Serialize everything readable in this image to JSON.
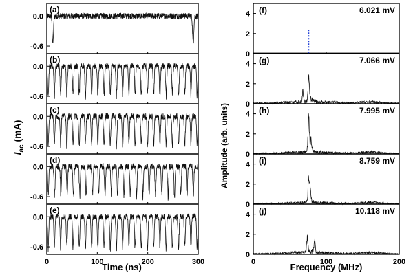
{
  "chart_data": [
    {
      "type": "line",
      "group": "left",
      "xlabel": "Time (ns)",
      "ylabel_main": "I",
      "ylabel_sub": "ac",
      "ylabel_unit": "(mA)",
      "xlim": [
        0,
        300
      ],
      "xticks": [
        0,
        100,
        200,
        300
      ],
      "xtick_labels": [
        "0",
        "100",
        "200",
        "300"
      ],
      "ylim": [
        -0.75,
        0.25
      ],
      "yticks": [
        0.0,
        -0.6
      ],
      "ytick_labels": [
        "0.0",
        "-0.6"
      ],
      "panels": [
        {
          "label": "(a)",
          "waveform": "noise",
          "baseline": 0.0,
          "dips_at": [
            12,
            290
          ],
          "dip_depth": -0.55
        },
        {
          "label": "(b)",
          "waveform": "periodic-dips",
          "baseline": 0.0,
          "period_ns": 12.3,
          "dip_depth": -0.6
        },
        {
          "label": "(c)",
          "waveform": "periodic-dips",
          "baseline": 0.0,
          "period_ns": 12.3,
          "dip_depth": -0.6
        },
        {
          "label": "(d)",
          "waveform": "periodic-dips",
          "baseline": 0.0,
          "period_ns": 12.5,
          "dip_depth": -0.6
        },
        {
          "label": "(e)",
          "waveform": "periodic-dips",
          "baseline": 0.0,
          "period_ns": 12.3,
          "dip_depth": -0.65
        }
      ]
    },
    {
      "type": "line",
      "group": "right",
      "xlabel": "Frequency (MHz)",
      "ylabel": "Amplitude (arb. units)",
      "xlim": [
        0,
        200
      ],
      "xticks": [
        0,
        100,
        200
      ],
      "xtick_labels": [
        "0",
        "100",
        "200"
      ],
      "ylim": [
        0,
        5
      ],
      "yticks": [
        0,
        2,
        4
      ],
      "ytick_labels": [
        "0",
        "2",
        "4"
      ],
      "panels": [
        {
          "label": "(f)",
          "voltage": "6.021 mV",
          "peaks": [
            {
              "f": 76,
              "a": 2.5
            }
          ],
          "style": "dashed-blue",
          "color": "#1f3fd6"
        },
        {
          "label": "(g)",
          "voltage": "7.066 mV",
          "peaks": [
            {
              "f": 76,
              "a": 2.7
            },
            {
              "f": 68,
              "a": 1.3
            }
          ],
          "noise": 0.4
        },
        {
          "label": "(h)",
          "voltage": "7.995 mV",
          "peaks": [
            {
              "f": 76,
              "a": 4.2
            },
            {
              "f": 79,
              "a": 1.5
            }
          ],
          "noise": 0.35
        },
        {
          "label": "(i)",
          "voltage": "8.759 mV",
          "peaks": [
            {
              "f": 76,
              "a": 3.0
            },
            {
              "f": 78,
              "a": 1.5
            }
          ],
          "noise": 0.3
        },
        {
          "label": "(j)",
          "voltage": "10.118 mV",
          "peaks": [
            {
              "f": 74,
              "a": 1.7
            },
            {
              "f": 84,
              "a": 1.6
            }
          ],
          "noise": 0.35
        }
      ]
    }
  ]
}
